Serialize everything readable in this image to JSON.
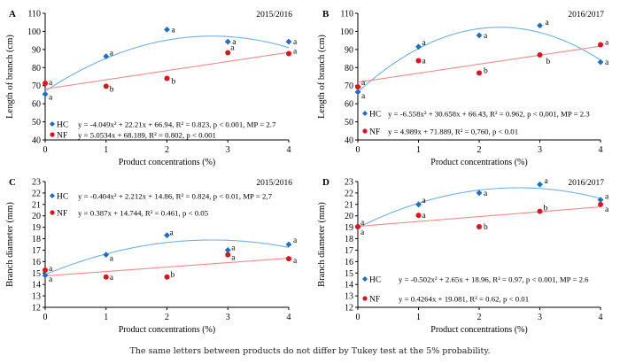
{
  "caption": "The same letters between products do not differ by Tukey test at the 5% probability.",
  "colors": {
    "hc_point": "#1c6ec9",
    "hc_curve": "#6fb0e3",
    "nf_point": "#e3121a",
    "nf_line": "#f08a8a"
  },
  "chart_data": [
    {
      "panel": "A",
      "type": "scatter",
      "season": "2015/2016",
      "xlabel": "Product concentrations (%)",
      "ylabel": "Length of branch (cm)",
      "x": [
        0,
        1,
        2,
        3,
        4
      ],
      "xlim": [
        0,
        4
      ],
      "ylim": [
        40,
        110
      ],
      "yticks": [
        40,
        50,
        60,
        70,
        80,
        90,
        100,
        110
      ],
      "xticks": [
        0,
        1,
        2,
        3,
        4
      ],
      "grid": false,
      "legend_placement": "bottom-left",
      "series": [
        {
          "name": "HC",
          "marker": "diamond",
          "values": [
            65.3,
            86.2,
            101.0,
            94.3,
            94.3
          ],
          "letters": [
            "a",
            "a",
            "a",
            "a",
            "a"
          ],
          "fit": {
            "type": "quadratic",
            "coef": [
              -4.049,
              22.21,
              66.94
            ]
          },
          "equation": "y = -4.049x² + 22.21x + 66.94, R² = 0.823, p < 0.001, MP = 2.7"
        },
        {
          "name": "NF",
          "marker": "circle",
          "values": [
            71.3,
            69.7,
            74.0,
            88.2,
            87.7
          ],
          "letters": [
            "a",
            "b",
            "b",
            "a",
            "a"
          ],
          "fit": {
            "type": "linear",
            "coef": [
              5.0534,
              68.189
            ]
          },
          "equation": "y = 5.0534x + 68.189, R² = 0.802, p < 0.001"
        }
      ]
    },
    {
      "panel": "B",
      "type": "scatter",
      "season": "2016/2017",
      "xlabel": "Product concentrations (%)",
      "ylabel": "Length of branch (cm)",
      "x": [
        0,
        1,
        2,
        3,
        4
      ],
      "xlim": [
        0,
        4
      ],
      "ylim": [
        40,
        110
      ],
      "yticks": [
        40,
        50,
        60,
        70,
        80,
        90,
        100,
        110
      ],
      "xticks": [
        0,
        1,
        2,
        3,
        4
      ],
      "grid": false,
      "legend_placement": "bottom-left",
      "series": [
        {
          "name": "HC",
          "marker": "diamond",
          "values": [
            66.5,
            91.5,
            97.8,
            103.2,
            83.0
          ],
          "letters": [
            "a",
            "a",
            "a",
            "a",
            "a"
          ],
          "fit": {
            "type": "quadratic",
            "coef": [
              -6.558,
              30.658,
              66.43
            ]
          },
          "equation": "y = -6.558x² + 30.658x + 66.43, R² = 0.962, p < 0,001, MP = 2.3"
        },
        {
          "name": "NF",
          "marker": "circle",
          "values": [
            69.3,
            83.8,
            77.0,
            87.0,
            92.6
          ],
          "letters": [
            "a",
            "a",
            "b",
            "b",
            "a"
          ],
          "fit": {
            "type": "linear",
            "coef": [
              4.989,
              71.889
            ]
          },
          "equation": "y = 4.989x + 71.889, R² = 0,760, p < 0.01"
        }
      ]
    },
    {
      "panel": "C",
      "type": "scatter",
      "season": "2015/2016",
      "xlabel": "Product concentrations (%)",
      "ylabel": "Branch diameter (mm)",
      "x": [
        0,
        1,
        2,
        3,
        4
      ],
      "xlim": [
        0,
        4
      ],
      "ylim": [
        12,
        23
      ],
      "yticks": [
        12,
        13,
        14,
        15,
        16,
        17,
        18,
        19,
        20,
        21,
        22,
        23
      ],
      "xticks": [
        0,
        1,
        2,
        3,
        4
      ],
      "grid": false,
      "legend_placement": "top-left",
      "series": [
        {
          "name": "HC",
          "marker": "diamond",
          "values": [
            14.8,
            16.6,
            18.3,
            17.0,
            17.5
          ],
          "letters": [
            "a",
            "a",
            "a",
            "a",
            "a"
          ],
          "fit": {
            "type": "quadratic",
            "coef": [
              -0.404,
              2.212,
              14.86
            ]
          },
          "equation": "y = -0.404x² + 2.212x + 14.86, R² = 0.824, p < 0.01, MP = 2,7"
        },
        {
          "name": "NF",
          "marker": "circle",
          "values": [
            15.25,
            14.65,
            14.65,
            16.6,
            16.25
          ],
          "letters": [
            "a",
            "a",
            "b",
            "a",
            "a"
          ],
          "fit": {
            "type": "linear",
            "coef": [
              0.387,
              14.744
            ]
          },
          "equation": "y = 0.387x + 14.744, R² = 0.461, p < 0.05"
        }
      ]
    },
    {
      "panel": "D",
      "type": "scatter",
      "season": "2016/2017",
      "xlabel": "Product concentrations (%)",
      "ylabel": "Branch diameter (mm)",
      "x": [
        0,
        1,
        2,
        3,
        4
      ],
      "xlim": [
        0,
        4
      ],
      "ylim": [
        12,
        23
      ],
      "yticks": [
        12,
        13,
        14,
        15,
        16,
        17,
        18,
        19,
        20,
        21,
        22,
        23
      ],
      "xticks": [
        0,
        1,
        2,
        3,
        4
      ],
      "grid": false,
      "legend_placement": "bottom-left",
      "series": [
        {
          "name": "HC",
          "marker": "diamond",
          "values": [
            19.05,
            21.0,
            22.0,
            22.75,
            21.4
          ],
          "letters": [
            "a",
            "a",
            "a",
            "a",
            "a"
          ],
          "fit": {
            "type": "quadratic",
            "coef": [
              -0.502,
              2.65,
              18.96
            ]
          },
          "equation": "y = -0.502x² + 2.65x + 18.96, R² = 0.97, p < 0.001, MP = 2.6"
        },
        {
          "name": "NF",
          "marker": "circle",
          "values": [
            19.05,
            20.05,
            19.05,
            20.4,
            21.0
          ],
          "letters": [
            "a",
            "a",
            "b",
            "b",
            "a"
          ],
          "fit": {
            "type": "linear",
            "coef": [
              0.4264,
              19.081
            ]
          },
          "equation": "y = 0.4264x + 19.081, R² = 0.62, p < 0.01"
        }
      ]
    }
  ]
}
